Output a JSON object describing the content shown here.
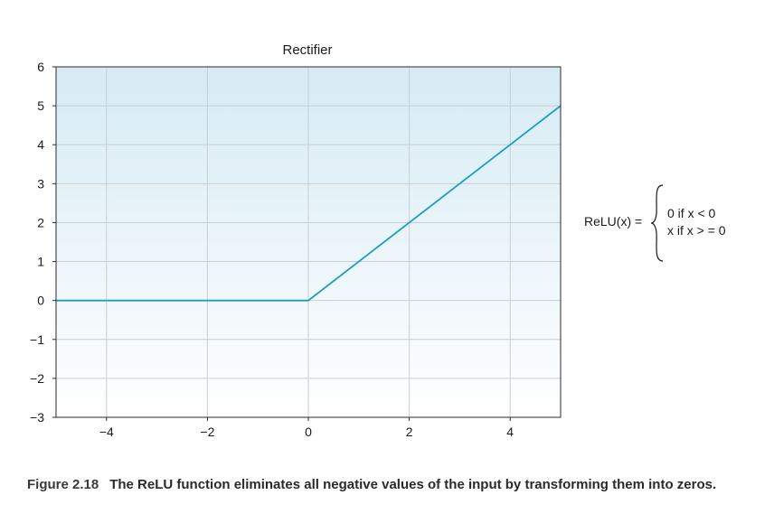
{
  "chart_data": {
    "type": "line",
    "title": "Rectifier",
    "xlabel": "",
    "ylabel": "",
    "xlim": [
      -5,
      5
    ],
    "ylim": [
      -3,
      6
    ],
    "xticks": [
      -4,
      -2,
      0,
      2,
      4
    ],
    "xtick_labels": [
      "−4",
      "−2",
      "0",
      "2",
      "4"
    ],
    "yticks": [
      -3,
      -2,
      -1,
      0,
      1,
      2,
      3,
      4,
      5,
      6
    ],
    "ytick_labels": [
      "−3",
      "−2",
      "−1",
      "0",
      "1",
      "2",
      "3",
      "4",
      "5",
      "6"
    ],
    "grid": true,
    "series": [
      {
        "x": [
          -5,
          0,
          5
        ],
        "y": [
          0,
          0,
          5
        ],
        "color": "#1a9fc4"
      }
    ]
  },
  "formula": {
    "lhs": "ReLU(x) =",
    "case1": "0 if x < 0",
    "case2": "x if x > = 0"
  },
  "caption": {
    "label": "Figure 2.18",
    "text": "The ReLU function eliminates all negative values of the input by transforming them into zeros."
  },
  "colors": {
    "line": "#1a9fc4",
    "plot_bg_top": "#d6ebf4",
    "plot_bg_bottom": "#ffffff",
    "grid": "#c8cfd4"
  }
}
